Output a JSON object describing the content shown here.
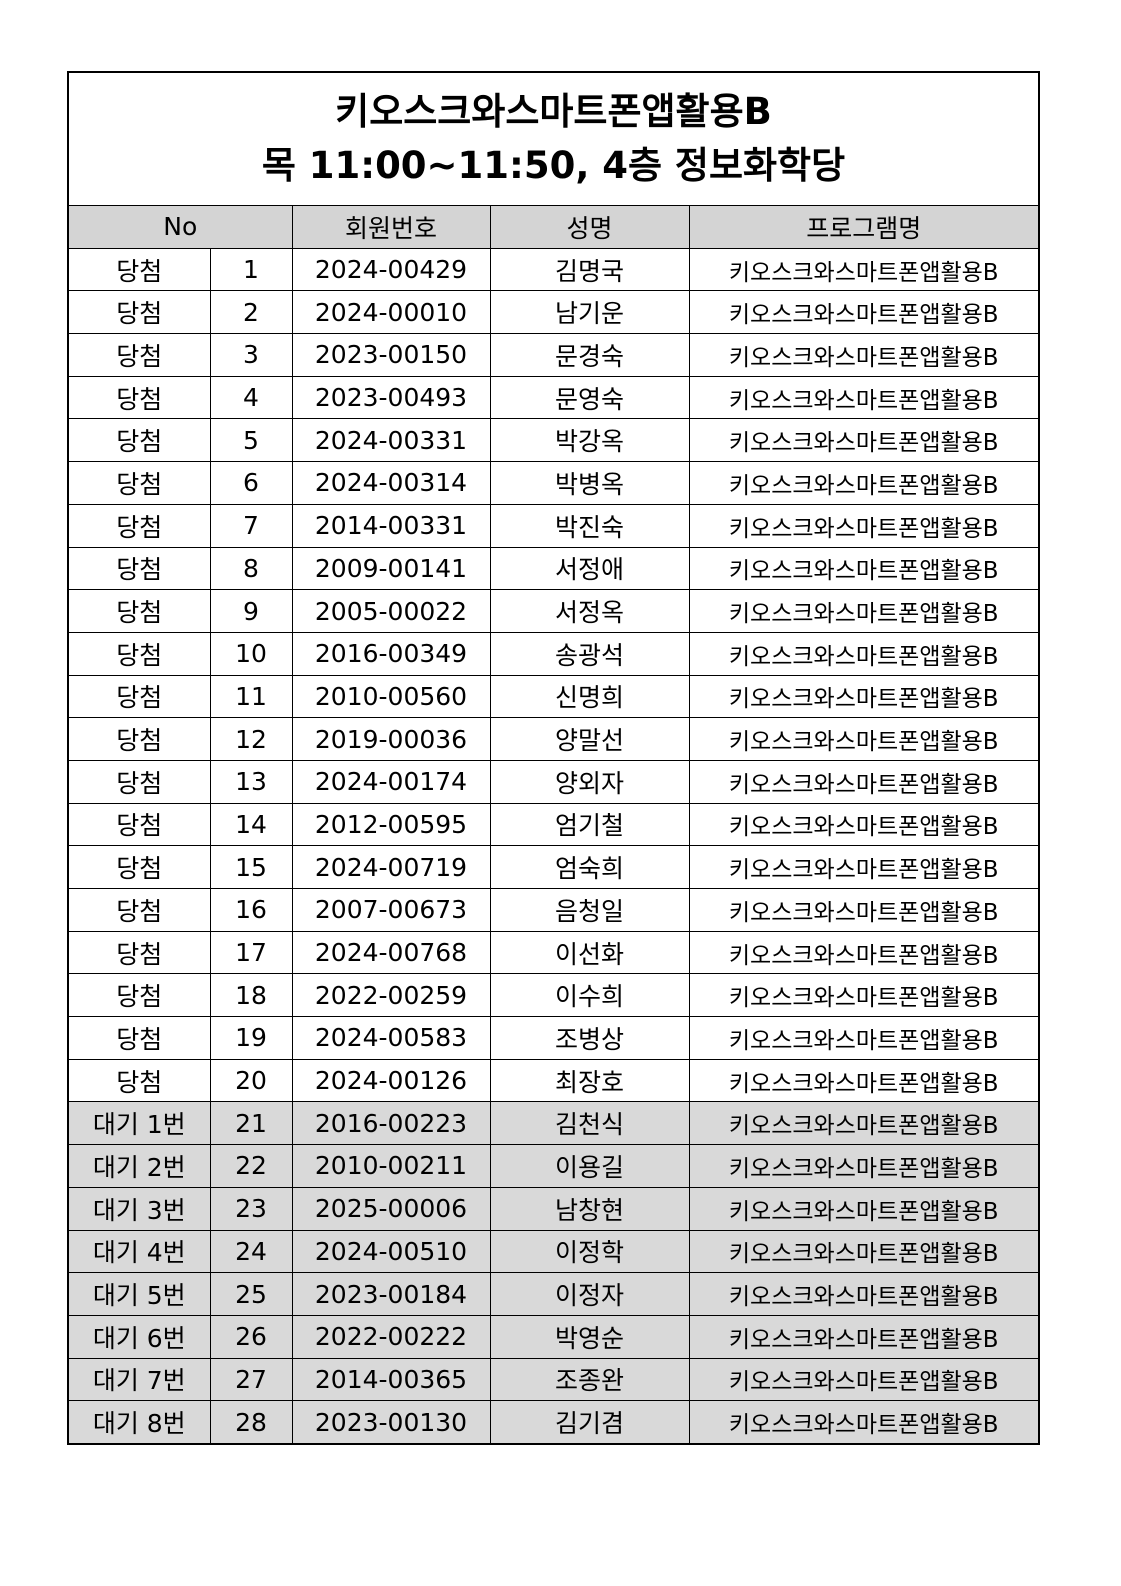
{
  "title": {
    "line1": "키오스크와스마트폰앱활용B",
    "line2": "목 11:00~11:50, 4층 정보화학당"
  },
  "headers": {
    "no": "No",
    "member_id": "회원번호",
    "name": "성명",
    "program": "프로그램명"
  },
  "rows": [
    {
      "status": "당첨",
      "no": "1",
      "member_id": "2024-00429",
      "name": "김명국",
      "program": "키오스크와스마트폰앱활용B"
    },
    {
      "status": "당첨",
      "no": "2",
      "member_id": "2024-00010",
      "name": "남기운",
      "program": "키오스크와스마트폰앱활용B"
    },
    {
      "status": "당첨",
      "no": "3",
      "member_id": "2023-00150",
      "name": "문경숙",
      "program": "키오스크와스마트폰앱활용B"
    },
    {
      "status": "당첨",
      "no": "4",
      "member_id": "2023-00493",
      "name": "문영숙",
      "program": "키오스크와스마트폰앱활용B"
    },
    {
      "status": "당첨",
      "no": "5",
      "member_id": "2024-00331",
      "name": "박강옥",
      "program": "키오스크와스마트폰앱활용B"
    },
    {
      "status": "당첨",
      "no": "6",
      "member_id": "2024-00314",
      "name": "박병옥",
      "program": "키오스크와스마트폰앱활용B"
    },
    {
      "status": "당첨",
      "no": "7",
      "member_id": "2014-00331",
      "name": "박진숙",
      "program": "키오스크와스마트폰앱활용B"
    },
    {
      "status": "당첨",
      "no": "8",
      "member_id": "2009-00141",
      "name": "서정애",
      "program": "키오스크와스마트폰앱활용B"
    },
    {
      "status": "당첨",
      "no": "9",
      "member_id": "2005-00022",
      "name": "서정옥",
      "program": "키오스크와스마트폰앱활용B"
    },
    {
      "status": "당첨",
      "no": "10",
      "member_id": "2016-00349",
      "name": "송광석",
      "program": "키오스크와스마트폰앱활용B"
    },
    {
      "status": "당첨",
      "no": "11",
      "member_id": "2010-00560",
      "name": "신명희",
      "program": "키오스크와스마트폰앱활용B"
    },
    {
      "status": "당첨",
      "no": "12",
      "member_id": "2019-00036",
      "name": "양말선",
      "program": "키오스크와스마트폰앱활용B"
    },
    {
      "status": "당첨",
      "no": "13",
      "member_id": "2024-00174",
      "name": "양외자",
      "program": "키오스크와스마트폰앱활용B"
    },
    {
      "status": "당첨",
      "no": "14",
      "member_id": "2012-00595",
      "name": "엄기철",
      "program": "키오스크와스마트폰앱활용B"
    },
    {
      "status": "당첨",
      "no": "15",
      "member_id": "2024-00719",
      "name": "엄숙희",
      "program": "키오스크와스마트폰앱활용B"
    },
    {
      "status": "당첨",
      "no": "16",
      "member_id": "2007-00673",
      "name": "음청일",
      "program": "키오스크와스마트폰앱활용B"
    },
    {
      "status": "당첨",
      "no": "17",
      "member_id": "2024-00768",
      "name": "이선화",
      "program": "키오스크와스마트폰앱활용B"
    },
    {
      "status": "당첨",
      "no": "18",
      "member_id": "2022-00259",
      "name": "이수희",
      "program": "키오스크와스마트폰앱활용B"
    },
    {
      "status": "당첨",
      "no": "19",
      "member_id": "2024-00583",
      "name": "조병상",
      "program": "키오스크와스마트폰앱활용B"
    },
    {
      "status": "당첨",
      "no": "20",
      "member_id": "2024-00126",
      "name": "최장호",
      "program": "키오스크와스마트폰앱활용B"
    },
    {
      "status": "대기 1번",
      "no": "21",
      "member_id": "2016-00223",
      "name": "김천식",
      "program": "키오스크와스마트폰앱활용B",
      "waitlist": true
    },
    {
      "status": "대기 2번",
      "no": "22",
      "member_id": "2010-00211",
      "name": "이용길",
      "program": "키오스크와스마트폰앱활용B",
      "waitlist": true
    },
    {
      "status": "대기 3번",
      "no": "23",
      "member_id": "2025-00006",
      "name": "남창현",
      "program": "키오스크와스마트폰앱활용B",
      "waitlist": true
    },
    {
      "status": "대기 4번",
      "no": "24",
      "member_id": "2024-00510",
      "name": "이정학",
      "program": "키오스크와스마트폰앱활용B",
      "waitlist": true
    },
    {
      "status": "대기 5번",
      "no": "25",
      "member_id": "2023-00184",
      "name": "이정자",
      "program": "키오스크와스마트폰앱활용B",
      "waitlist": true
    },
    {
      "status": "대기 6번",
      "no": "26",
      "member_id": "2022-00222",
      "name": "박영순",
      "program": "키오스크와스마트폰앱활용B",
      "waitlist": true
    },
    {
      "status": "대기 7번",
      "no": "27",
      "member_id": "2014-00365",
      "name": "조종완",
      "program": "키오스크와스마트폰앱활용B",
      "waitlist": true
    },
    {
      "status": "대기 8번",
      "no": "28",
      "member_id": "2023-00130",
      "name": "김기겸",
      "program": "키오스크와스마트폰앱활용B",
      "waitlist": true
    }
  ]
}
